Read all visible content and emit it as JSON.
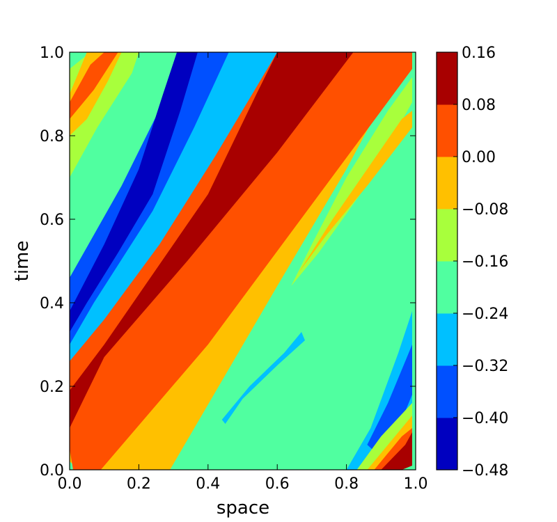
{
  "chart_data": {
    "type": "heatmap",
    "subtype": "filled-contour",
    "title": "",
    "xlabel": "space",
    "ylabel": "time",
    "xlim": [
      0.0,
      1.0
    ],
    "ylim": [
      0.0,
      1.0
    ],
    "x_ticks": [
      "0.0",
      "0.2",
      "0.4",
      "0.6",
      "0.8",
      "1.0"
    ],
    "y_ticks": [
      "0.0",
      "0.2",
      "0.4",
      "0.6",
      "0.8",
      "1.0"
    ],
    "colorbar": {
      "placement": "right",
      "levels": [
        -0.48,
        -0.4,
        -0.32,
        -0.24,
        -0.16,
        -0.08,
        0.0,
        0.08,
        0.16
      ],
      "tick_labels": [
        "−0.48",
        "−0.40",
        "−0.32",
        "−0.24",
        "−0.16",
        "−0.08",
        "0.00",
        "0.08",
        "0.16"
      ],
      "colors": [
        "#0000c0",
        "#0050ff",
        "#00c0ff",
        "#50ffa0",
        "#a8ff3c",
        "#ffc000",
        "#ff5000",
        "#a80000"
      ]
    },
    "field_description": "travelling wave bands moving right over time",
    "bands": [
      {
        "name": "background",
        "level_index": 3
      },
      {
        "name": "orange-lower-right",
        "level_index": 5,
        "polygon": [
          [
            0.03,
            0.0
          ],
          [
            0.29,
            0.0
          ],
          [
            0.6,
            0.44
          ],
          [
            0.8,
            0.72
          ],
          [
            0.98,
            1.0
          ],
          [
            0.57,
            1.0
          ],
          [
            0.12,
            0.36
          ],
          [
            0.0,
            0.1
          ],
          [
            0.0,
            0.02
          ]
        ]
      },
      {
        "name": "red-orange",
        "level_index": 6,
        "polygon": [
          [
            0.0,
            0.05
          ],
          [
            0.0,
            0.28
          ],
          [
            0.36,
            0.76
          ],
          [
            0.56,
            1.0
          ],
          [
            0.99,
            1.0
          ],
          [
            0.99,
            0.96
          ],
          [
            0.4,
            0.3
          ],
          [
            0.09,
            0.0
          ],
          [
            0.01,
            0.0
          ]
        ]
      },
      {
        "name": "darkred-ridge",
        "level_index": 7,
        "polygon": [
          [
            0.0,
            0.1
          ],
          [
            0.0,
            0.19
          ],
          [
            0.1,
            0.3
          ],
          [
            0.4,
            0.66
          ],
          [
            0.54,
            0.9
          ],
          [
            0.6,
            1.0
          ],
          [
            0.82,
            1.0
          ],
          [
            0.6,
            0.76
          ],
          [
            0.34,
            0.5
          ],
          [
            0.1,
            0.27
          ],
          [
            0.0,
            0.1
          ]
        ]
      },
      {
        "name": "cyan-upper-left",
        "level_index": 2,
        "polygon": [
          [
            0.0,
            0.26
          ],
          [
            0.0,
            0.42
          ],
          [
            0.2,
            0.68
          ],
          [
            0.34,
            0.9
          ],
          [
            0.4,
            1.0
          ],
          [
            0.6,
            1.0
          ],
          [
            0.42,
            0.75
          ],
          [
            0.26,
            0.54
          ],
          [
            0.1,
            0.36
          ]
        ]
      },
      {
        "name": "blue-upper-left",
        "level_index": 1,
        "polygon": [
          [
            0.0,
            0.3
          ],
          [
            0.0,
            0.46
          ],
          [
            0.15,
            0.68
          ],
          [
            0.27,
            0.88
          ],
          [
            0.32,
            1.0
          ],
          [
            0.46,
            1.0
          ],
          [
            0.36,
            0.82
          ],
          [
            0.24,
            0.62
          ],
          [
            0.07,
            0.4
          ]
        ]
      },
      {
        "name": "darkblue-upper-left",
        "level_index": 0,
        "polygon": [
          [
            0.0,
            0.33
          ],
          [
            0.0,
            0.38
          ],
          [
            0.1,
            0.54
          ],
          [
            0.2,
            0.72
          ],
          [
            0.27,
            0.9
          ],
          [
            0.31,
            1.0
          ],
          [
            0.37,
            1.0
          ],
          [
            0.32,
            0.86
          ],
          [
            0.24,
            0.66
          ],
          [
            0.14,
            0.52
          ],
          [
            0.05,
            0.4
          ]
        ]
      },
      {
        "name": "green-upper-left",
        "level_index": 4,
        "polygon": [
          [
            0.0,
            0.7
          ],
          [
            0.0,
            0.96
          ],
          [
            0.06,
            1.0
          ],
          [
            0.2,
            1.0
          ],
          [
            0.18,
            0.95
          ],
          [
            0.08,
            0.82
          ]
        ]
      },
      {
        "name": "orange-upper-left",
        "level_index": 5,
        "polygon": [
          [
            0.0,
            0.8
          ],
          [
            0.0,
            0.9
          ],
          [
            0.05,
            1.0
          ],
          [
            0.15,
            1.0
          ],
          [
            0.11,
            0.93
          ],
          [
            0.05,
            0.84
          ]
        ]
      },
      {
        "name": "red-upper-left",
        "level_index": 6,
        "polygon": [
          [
            0.0,
            0.84
          ],
          [
            0.0,
            0.88
          ],
          [
            0.06,
            0.97
          ],
          [
            0.1,
            1.0
          ],
          [
            0.14,
            1.0
          ],
          [
            0.07,
            0.91
          ]
        ]
      },
      {
        "name": "green-wedge-right",
        "level_index": 4,
        "polygon": [
          [
            0.64,
            0.44
          ],
          [
            0.7,
            0.54
          ],
          [
            0.8,
            0.7
          ],
          [
            0.92,
            0.86
          ],
          [
            0.99,
            0.94
          ],
          [
            0.99,
            0.88
          ],
          [
            0.84,
            0.66
          ],
          [
            0.72,
            0.52
          ]
        ]
      },
      {
        "name": "orange-wedge-right",
        "level_index": 5,
        "polygon": [
          [
            0.66,
            0.47
          ],
          [
            0.76,
            0.6
          ],
          [
            0.86,
            0.72
          ],
          [
            0.96,
            0.84
          ],
          [
            0.99,
            0.86
          ],
          [
            0.99,
            0.82
          ],
          [
            0.86,
            0.68
          ],
          [
            0.74,
            0.56
          ]
        ]
      },
      {
        "name": "cyan-streak-lower",
        "level_index": 2,
        "polygon": [
          [
            0.44,
            0.12
          ],
          [
            0.52,
            0.2
          ],
          [
            0.62,
            0.28
          ],
          [
            0.67,
            0.33
          ],
          [
            0.68,
            0.31
          ],
          [
            0.6,
            0.25
          ],
          [
            0.5,
            0.17
          ],
          [
            0.45,
            0.11
          ]
        ]
      },
      {
        "name": "blue-lower-right",
        "level_index": 2,
        "polygon": [
          [
            0.8,
            0.0
          ],
          [
            0.87,
            0.1
          ],
          [
            0.95,
            0.28
          ],
          [
            0.99,
            0.38
          ],
          [
            0.99,
            0.1
          ],
          [
            0.93,
            0.0
          ]
        ]
      },
      {
        "name": "darkblue-lower-right",
        "level_index": 1,
        "polygon": [
          [
            0.86,
            0.06
          ],
          [
            0.92,
            0.16
          ],
          [
            0.97,
            0.26
          ],
          [
            0.99,
            0.3
          ],
          [
            0.99,
            0.18
          ],
          [
            0.94,
            0.08
          ],
          [
            0.9,
            0.03
          ]
        ]
      },
      {
        "name": "green-lower-right",
        "level_index": 4,
        "polygon": [
          [
            0.83,
            0.0
          ],
          [
            0.9,
            0.08
          ],
          [
            0.99,
            0.16
          ],
          [
            0.99,
            0.12
          ],
          [
            0.92,
            0.04
          ],
          [
            0.87,
            0.0
          ]
        ]
      },
      {
        "name": "orange-lower-right-corner",
        "level_index": 5,
        "polygon": [
          [
            0.86,
            0.0
          ],
          [
            0.94,
            0.08
          ],
          [
            0.99,
            0.13
          ],
          [
            0.99,
            0.08
          ],
          [
            0.93,
            0.0
          ]
        ]
      },
      {
        "name": "red-lower-right-corner",
        "level_index": 6,
        "polygon": [
          [
            0.88,
            0.0
          ],
          [
            0.96,
            0.08
          ],
          [
            0.99,
            0.1
          ],
          [
            0.99,
            0.04
          ],
          [
            0.95,
            0.0
          ]
        ]
      },
      {
        "name": "darkred-lower-right-corner",
        "level_index": 7,
        "polygon": [
          [
            0.9,
            0.0
          ],
          [
            0.97,
            0.06
          ],
          [
            0.99,
            0.09
          ],
          [
            0.99,
            0.01
          ],
          [
            0.96,
            0.0
          ]
        ]
      }
    ]
  }
}
